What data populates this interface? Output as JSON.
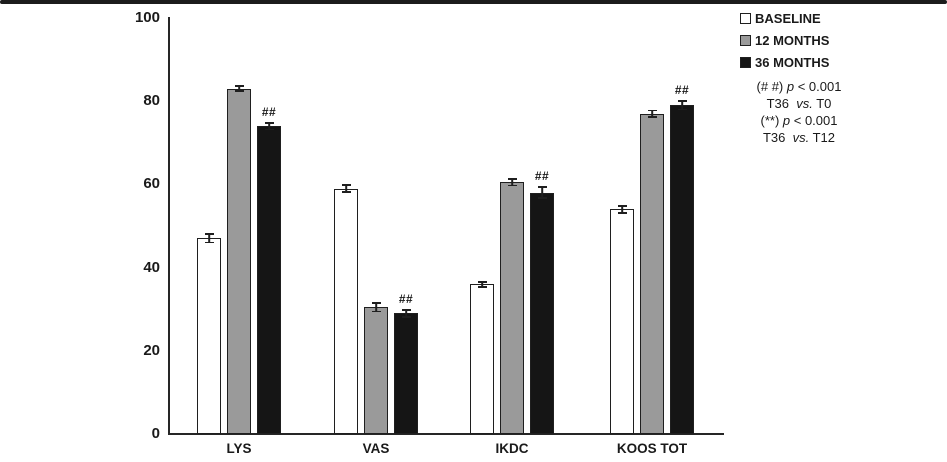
{
  "chart_data": {
    "type": "bar",
    "title": "",
    "xlabel": "",
    "ylabel": "",
    "categories": [
      "LYS",
      "VAS",
      "IKDC",
      "KOOS TOT"
    ],
    "series": [
      {
        "name": "BASELINE",
        "fill": "#ffffff",
        "values": [
          47,
          59,
          36,
          54
        ],
        "errors": [
          1.2,
          1.0,
          0.8,
          1.0
        ]
      },
      {
        "name": "12 MONTHS",
        "fill": "#9a9a9a",
        "values": [
          83,
          30.5,
          60.5,
          77
        ],
        "errors": [
          0.8,
          1.2,
          1.0,
          1.0
        ]
      },
      {
        "name": "36 MONTHS",
        "fill": "#151515",
        "values": [
          74,
          29,
          58,
          79
        ],
        "errors": [
          1.0,
          1.0,
          1.5,
          1.2
        ],
        "point_annotations": [
          "##",
          "##",
          "##",
          "##"
        ]
      }
    ],
    "ylim": [
      0,
      100
    ],
    "yticks": [
      "0",
      "20",
      "40",
      "60",
      "80",
      "100"
    ],
    "grid": false,
    "error_bars": true,
    "legend_position": "top-right",
    "annotation_note_lines": [
      [
        {
          "t": "(# #) "
        },
        {
          "t": "p",
          "i": true
        },
        {
          "t": " < 0.001"
        }
      ],
      [
        {
          "t": "T36 "
        },
        {
          "t": " vs.",
          "i": true
        },
        {
          "t": " T0"
        }
      ],
      [
        {
          "t": "(**) "
        },
        {
          "t": "p",
          "i": true
        },
        {
          "t": " < 0.001"
        }
      ],
      [
        {
          "t": "T36 "
        },
        {
          "t": " vs.",
          "i": true
        },
        {
          "t": " T12"
        }
      ]
    ]
  },
  "colors": {
    "axis": "#262626",
    "bar_border": "#1f1f1f",
    "text": "#1a1a1a",
    "top_border": "#1c1c1c"
  }
}
